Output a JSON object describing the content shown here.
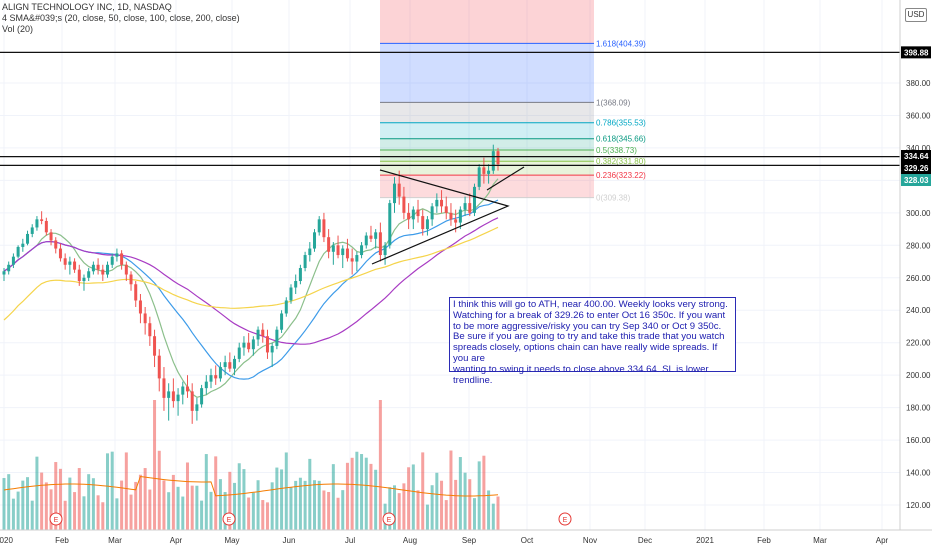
{
  "header": {
    "symbol_line": "ALIGN TECHNOLOGY INC, 1D, NASDAQ",
    "sma_line": "4 SMA&#039;s (20, close, 50, close, 100, close, 200, close)",
    "vol_line": "Vol (20)",
    "currency": "USD"
  },
  "note_text": "I think this will go to ATH, near 400.00. Weekly looks very strong.\nWatching for a break of 329.26 to enter Oct 16 350c. If you want\nto be more aggressive/risky you can try Sep 340 or Oct 9 350c.\nBe sure if you are going to try and take this trade that you watch\nspreads closely, options chain can have really wide spreads. If you are\nwanting to swing it needs to close above 334.64. SL is lower trendline.",
  "chart_data": {
    "type": "candlestick",
    "y_axis": {
      "min": 110,
      "max": 420,
      "ticks": [
        120,
        140,
        160,
        180,
        200,
        220,
        240,
        260,
        280,
        300,
        320,
        340,
        360,
        380
      ],
      "tick_labels": [
        "120.00",
        "140.00",
        "160.00",
        "180.00",
        "200.00",
        "220.00",
        "240.00",
        "260.00",
        "280.00",
        "300.00",
        "320.00",
        "340.00",
        "360.00",
        "380.00"
      ]
    },
    "x_axis": {
      "labels": [
        "2020",
        "Feb",
        "Mar",
        "Apr",
        "May",
        "Jun",
        "Jul",
        "Aug",
        "Sep",
        "Oct",
        "Nov",
        "Dec",
        "2021",
        "Feb",
        "Mar",
        "Apr"
      ]
    },
    "price_tags": [
      {
        "label": "398.88",
        "value": 398.88,
        "color": "#000000"
      },
      {
        "label": "334.64",
        "value": 334.64,
        "color": "#000000"
      },
      {
        "label": "329.26",
        "value": 329.26,
        "color": "#000000"
      },
      {
        "label": "328.03",
        "value": 328.03,
        "color": "#26a69a"
      }
    ],
    "fib_levels": [
      {
        "ratio": "1.618",
        "value": 404.39,
        "label": "1.618(404.39)",
        "color": "#2962ff"
      },
      {
        "ratio": "1",
        "value": 368.09,
        "label": "1(368.09)",
        "color": "#787b86"
      },
      {
        "ratio": "0.786",
        "value": 355.53,
        "label": "0.786(355.53)",
        "color": "#00a7c4"
      },
      {
        "ratio": "0.618",
        "value": 345.66,
        "label": "0.618(345.66)",
        "color": "#089981"
      },
      {
        "ratio": "0.5",
        "value": 338.73,
        "label": "0.5(338.73)",
        "color": "#4caf50"
      },
      {
        "ratio": "0.382",
        "value": 331.8,
        "label": "0.382(331.80)",
        "color": "#8bc34a"
      },
      {
        "ratio": "0.236",
        "value": 323.22,
        "label": "0.236(323.22)",
        "color": "#f23645"
      },
      {
        "ratio": "0",
        "value": 309.38,
        "label": "0(309.38)",
        "color": "#d0d0d0"
      }
    ],
    "horizontal_lines": [
      398.88,
      334.64,
      329.26
    ],
    "price_series": [
      [
        262,
        266,
        258,
        264
      ],
      [
        264,
        270,
        262,
        268
      ],
      [
        268,
        275,
        266,
        273
      ],
      [
        273,
        280,
        272,
        279
      ],
      [
        279,
        284,
        276,
        281
      ],
      [
        281,
        289,
        280,
        287
      ],
      [
        287,
        293,
        285,
        291
      ],
      [
        291,
        298,
        289,
        296
      ],
      [
        296,
        301,
        293,
        295
      ],
      [
        295,
        297,
        286,
        288
      ],
      [
        288,
        290,
        280,
        283
      ],
      [
        283,
        285,
        275,
        278
      ],
      [
        278,
        281,
        270,
        272
      ],
      [
        272,
        275,
        265,
        268
      ],
      [
        268,
        273,
        262,
        270
      ],
      [
        270,
        272,
        263,
        265
      ],
      [
        265,
        268,
        255,
        258
      ],
      [
        258,
        262,
        252,
        260
      ],
      [
        260,
        266,
        258,
        264
      ],
      [
        264,
        270,
        262,
        268
      ],
      [
        268,
        272,
        262,
        265
      ],
      [
        265,
        268,
        258,
        262
      ],
      [
        262,
        270,
        260,
        268
      ],
      [
        268,
        275,
        266,
        273
      ],
      [
        273,
        278,
        270,
        275
      ],
      [
        275,
        277,
        265,
        268
      ],
      [
        268,
        270,
        258,
        262
      ],
      [
        262,
        264,
        252,
        256
      ],
      [
        256,
        258,
        242,
        246
      ],
      [
        246,
        250,
        232,
        238
      ],
      [
        238,
        242,
        225,
        232
      ],
      [
        232,
        236,
        218,
        224
      ],
      [
        224,
        228,
        205,
        212
      ],
      [
        212,
        216,
        190,
        198
      ],
      [
        198,
        205,
        178,
        186
      ],
      [
        186,
        195,
        172,
        190
      ],
      [
        190,
        198,
        180,
        184
      ],
      [
        184,
        192,
        175,
        188
      ],
      [
        188,
        196,
        182,
        193
      ],
      [
        193,
        200,
        186,
        190
      ],
      [
        190,
        195,
        170,
        178
      ],
      [
        178,
        186,
        172,
        182
      ],
      [
        182,
        194,
        180,
        192
      ],
      [
        192,
        200,
        188,
        196
      ],
      [
        196,
        204,
        192,
        200
      ],
      [
        200,
        206,
        194,
        198
      ],
      [
        198,
        208,
        196,
        205
      ],
      [
        205,
        212,
        200,
        208
      ],
      [
        208,
        214,
        202,
        204
      ],
      [
        204,
        212,
        200,
        210
      ],
      [
        210,
        220,
        208,
        217
      ],
      [
        217,
        224,
        212,
        220
      ],
      [
        220,
        226,
        214,
        216
      ],
      [
        216,
        224,
        212,
        222
      ],
      [
        222,
        230,
        218,
        228
      ],
      [
        228,
        232,
        220,
        224
      ],
      [
        224,
        228,
        210,
        214
      ],
      [
        214,
        220,
        205,
        218
      ],
      [
        218,
        230,
        216,
        228
      ],
      [
        228,
        240,
        226,
        238
      ],
      [
        238,
        248,
        236,
        246
      ],
      [
        246,
        256,
        244,
        254
      ],
      [
        254,
        262,
        250,
        258
      ],
      [
        258,
        268,
        256,
        266
      ],
      [
        266,
        276,
        264,
        274
      ],
      [
        274,
        282,
        270,
        278
      ],
      [
        278,
        290,
        276,
        288
      ],
      [
        288,
        298,
        286,
        296
      ],
      [
        296,
        300,
        282,
        285
      ],
      [
        285,
        290,
        272,
        276
      ],
      [
        276,
        282,
        268,
        280
      ],
      [
        280,
        286,
        272,
        274
      ],
      [
        274,
        280,
        266,
        278
      ],
      [
        278,
        284,
        270,
        272
      ],
      [
        272,
        278,
        262,
        270
      ],
      [
        270,
        276,
        264,
        274
      ],
      [
        274,
        282,
        272,
        280
      ],
      [
        280,
        288,
        278,
        286
      ],
      [
        286,
        292,
        282,
        284
      ],
      [
        284,
        290,
        278,
        288
      ],
      [
        288,
        294,
        270,
        274
      ],
      [
        274,
        282,
        268,
        280
      ],
      [
        280,
        308,
        278,
        306
      ],
      [
        306,
        322,
        300,
        318
      ],
      [
        318,
        326,
        305,
        310
      ],
      [
        310,
        316,
        296,
        300
      ],
      [
        300,
        306,
        290,
        296
      ],
      [
        296,
        304,
        290,
        302
      ],
      [
        302,
        308,
        294,
        298
      ],
      [
        298,
        302,
        286,
        290
      ],
      [
        290,
        298,
        286,
        296
      ],
      [
        296,
        306,
        292,
        304
      ],
      [
        304,
        312,
        300,
        308
      ],
      [
        308,
        314,
        300,
        304
      ],
      [
        304,
        310,
        296,
        300
      ],
      [
        300,
        306,
        292,
        296
      ],
      [
        296,
        302,
        288,
        294
      ],
      [
        294,
        304,
        290,
        302
      ],
      [
        302,
        310,
        298,
        306
      ],
      [
        306,
        312,
        298,
        300
      ],
      [
        300,
        318,
        298,
        316
      ],
      [
        316,
        330,
        314,
        328
      ],
      [
        328,
        334,
        318,
        324
      ],
      [
        324,
        330,
        318,
        326
      ],
      [
        326,
        342,
        324,
        338
      ],
      [
        338,
        340,
        326,
        330
      ]
    ],
    "series": [
      {
        "name": "SMA 20",
        "color": "#8bbf8b"
      },
      {
        "name": "SMA 50",
        "color": "#3d9be9"
      },
      {
        "name": "SMA 100",
        "color": "#a83bc3"
      },
      {
        "name": "SMA 200",
        "color": "#f5d44b"
      }
    ],
    "volume_markers": [
      "E",
      "E",
      "E",
      "E"
    ],
    "event_marker_color": "#e53935"
  }
}
